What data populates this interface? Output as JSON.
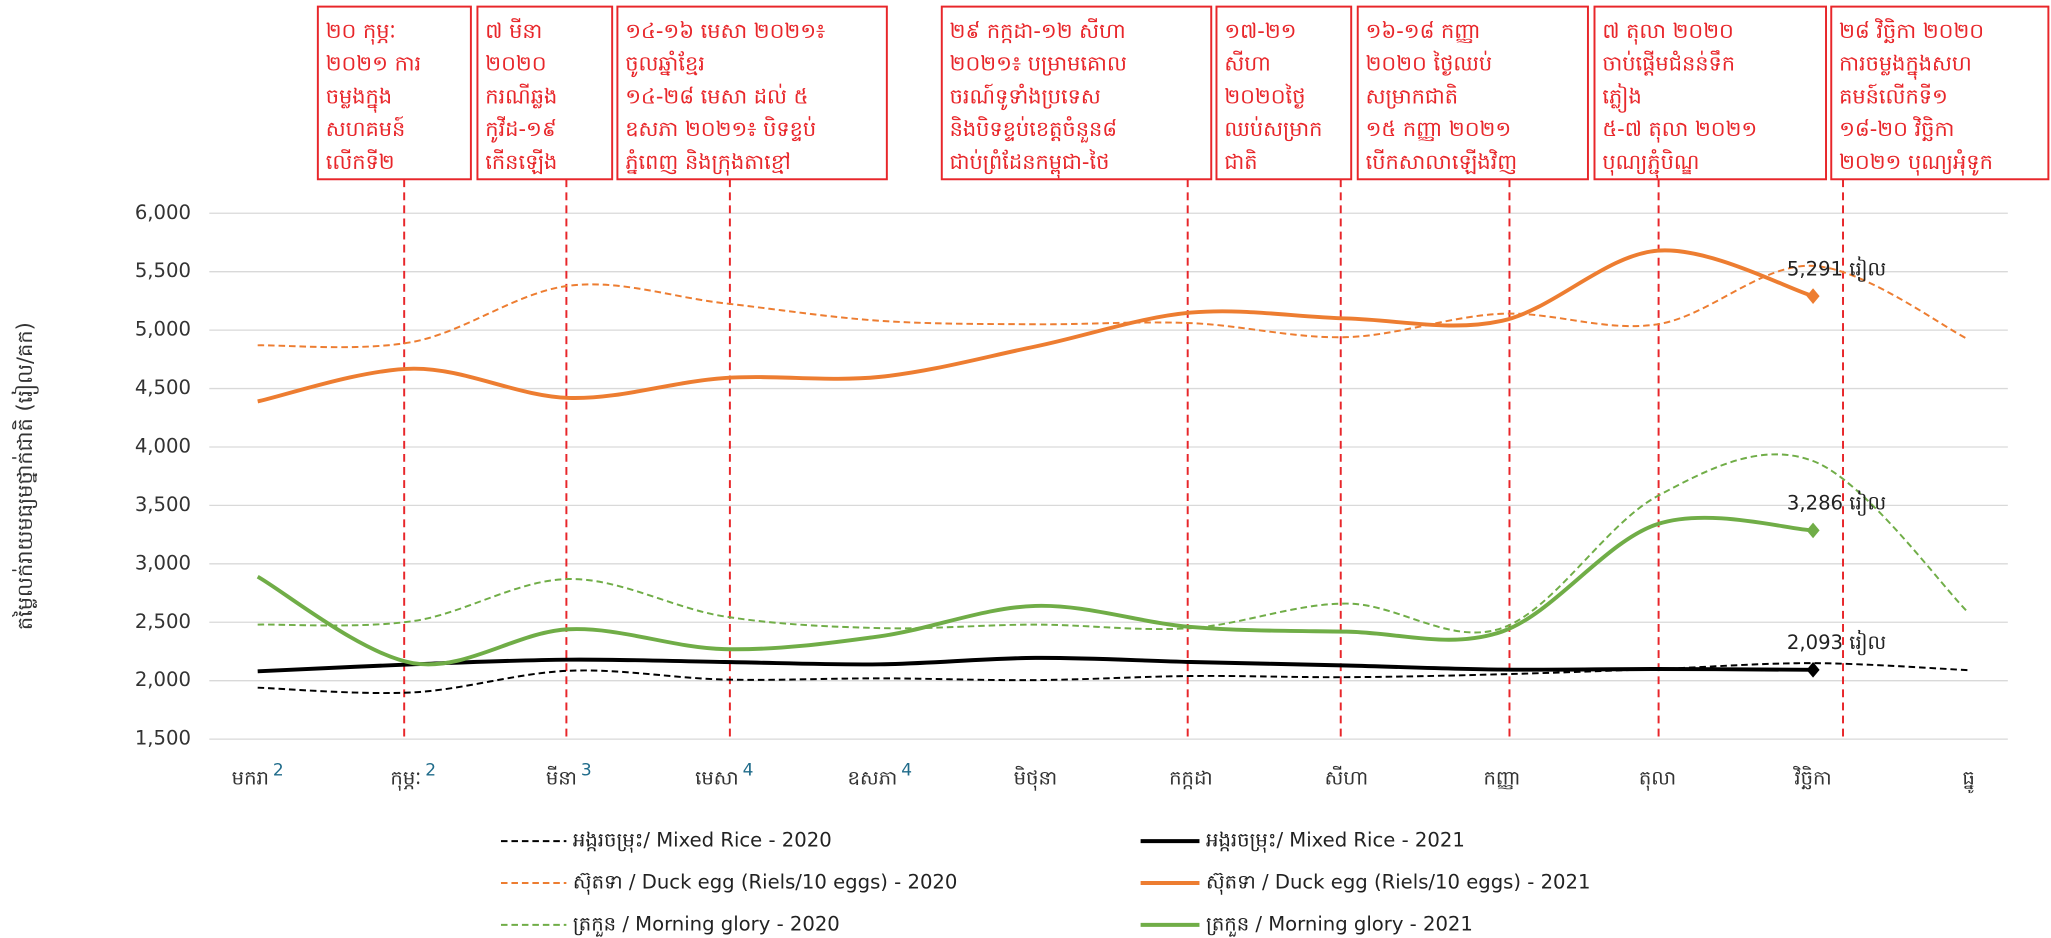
{
  "chart_data": {
    "type": "line",
    "y_label": "តម្លៃលក់រាយមធ្យមថ្នាក់ជាតិ (រៀល/គក)",
    "categories": [
      "មករា",
      "កុម្ភៈ",
      "មីនា",
      "មេសា",
      "ឧសភា",
      "មិថុនា",
      "កក្កដា",
      "សីហា",
      "កញ្ញា",
      "តុលា",
      "វិច្ឆិកា",
      "ធ្នូ"
    ],
    "category_notes": [
      "2",
      "2",
      "3",
      "4",
      "4",
      null,
      null,
      null,
      null,
      null,
      null,
      null
    ],
    "ylim": [
      1500,
      6000
    ],
    "yticks": [
      {
        "value": 1500,
        "label": "1,500"
      },
      {
        "value": 2000,
        "label": "2,000"
      },
      {
        "value": 2500,
        "label": "2,500"
      },
      {
        "value": 3000,
        "label": "3,000"
      },
      {
        "value": 3500,
        "label": "3,500"
      },
      {
        "value": 4000,
        "label": "4,000"
      },
      {
        "value": 4500,
        "label": "4,500"
      },
      {
        "value": 5000,
        "label": "5,000"
      },
      {
        "value": 5500,
        "label": "5,500"
      },
      {
        "value": 6000,
        "label": "6,000"
      }
    ],
    "grid": true,
    "series": [
      {
        "name": "អង្ករចម្រុះ/ Mixed Rice - 2020",
        "color": "#000000",
        "style": "dashed",
        "values": [
          1940,
          1900,
          2085,
          2010,
          2020,
          2005,
          2040,
          2030,
          2055,
          2100,
          2150,
          2090
        ]
      },
      {
        "name": "អង្ករចម្រុះ/ Mixed Rice - 2021",
        "color": "#000000",
        "style": "solid",
        "values": [
          2080,
          2140,
          2180,
          2160,
          2140,
          2195,
          2160,
          2130,
          2095,
          2100,
          2093,
          null
        ],
        "value_labels": [
          null,
          null,
          null,
          null,
          null,
          null,
          null,
          null,
          null,
          null,
          "2,093 រៀល",
          null
        ]
      },
      {
        "name": "ស៊ុតទា / Duck egg (Riels/10 eggs) - 2020",
        "color": "#ed7d31",
        "style": "dashed",
        "values": [
          4870,
          4900,
          5380,
          5230,
          5080,
          5050,
          5060,
          4940,
          5140,
          5050,
          5550,
          4920
        ]
      },
      {
        "name": "ស៊ុតទា / Duck egg (Riels/10 eggs) - 2021",
        "color": "#ed7d31",
        "style": "solid",
        "values": [
          4390,
          4670,
          4420,
          4590,
          4600,
          4860,
          5150,
          5100,
          5080,
          5680,
          5291,
          null
        ],
        "value_labels": [
          null,
          null,
          null,
          null,
          null,
          null,
          null,
          null,
          null,
          null,
          "5,291 រៀល",
          null
        ]
      },
      {
        "name": "ត្រកួន / Morning glory - 2020",
        "color": "#70ad47",
        "style": "dashed",
        "values": [
          2480,
          2510,
          2870,
          2550,
          2450,
          2480,
          2450,
          2660,
          2450,
          3580,
          3880,
          2580
        ]
      },
      {
        "name": "ត្រកួន / Morning glory - 2021",
        "color": "#70ad47",
        "style": "solid",
        "values": [
          2890,
          2150,
          2440,
          2270,
          2380,
          2640,
          2460,
          2420,
          2420,
          3340,
          3286,
          null
        ],
        "value_labels": [
          null,
          null,
          null,
          null,
          null,
          null,
          null,
          null,
          null,
          null,
          "3,286 រៀល",
          null
        ]
      }
    ],
    "annotations": [
      {
        "lines": [
          "២០ កុម្ភៈ",
          "២០២១ ការ",
          "ចម្លងក្នុង",
          "សហគមន៍",
          "លើកទី២"
        ]
      },
      {
        "lines": [
          "៧ មីនា",
          "២០២០",
          "ករណីឆ្លង",
          "កូវីដ-១៩",
          "កើនឡើង"
        ]
      },
      {
        "lines": [
          "១៤-១៦ មេសា ២០២១៖",
          "ចូលឆ្នាំខ្មែរ",
          "១៤-២៨ មេសា ដល់ ៥",
          "ឧសភា ២០២១៖ បិទខ្ទប់",
          "ភ្នំពេញ និងក្រុងតាខ្មៅ"
        ]
      },
      {
        "lines": [
          "២៩ កក្កដា-១២ សីហា",
          "២០២១៖ បម្រាមគោល",
          "ចរណ៍ទូទាំងប្រទេស",
          "និងបិទខ្ទប់ខេត្តចំនួន៨",
          "ជាប់ព្រំដែនកម្ពុជា-ថៃ"
        ]
      },
      {
        "lines": [
          "១៧-២១",
          "សីហា",
          "២០២០ថ្ងៃ",
          "ឈប់សម្រាក",
          "ជាតិ"
        ]
      },
      {
        "lines": [
          "១៦-១៨ កញ្ញា",
          "២០២០ ថ្ងៃឈប់",
          "សម្រាកជាតិ",
          "១៥ កញ្ញា ២០២១",
          "បើកសាលាឡើងវិញ"
        ]
      },
      {
        "lines": [
          "៧ តុលា ២០២០",
          "ចាប់ផ្តើមជំនន់ទឹក",
          "ភ្លៀង",
          "៥-៧ តុលា ២០២១",
          "បុណ្យភ្ជុំបិណ្ឌ"
        ]
      },
      {
        "lines": [
          "២៨ វិច្ឆិកា ២០២០",
          "ការចម្លងក្នុងសហ",
          "គមន៍លើកទី១",
          "១៨-២០ វិច្ឆិកា",
          "២០២១ បុណ្យអុំទូក"
        ]
      }
    ]
  }
}
